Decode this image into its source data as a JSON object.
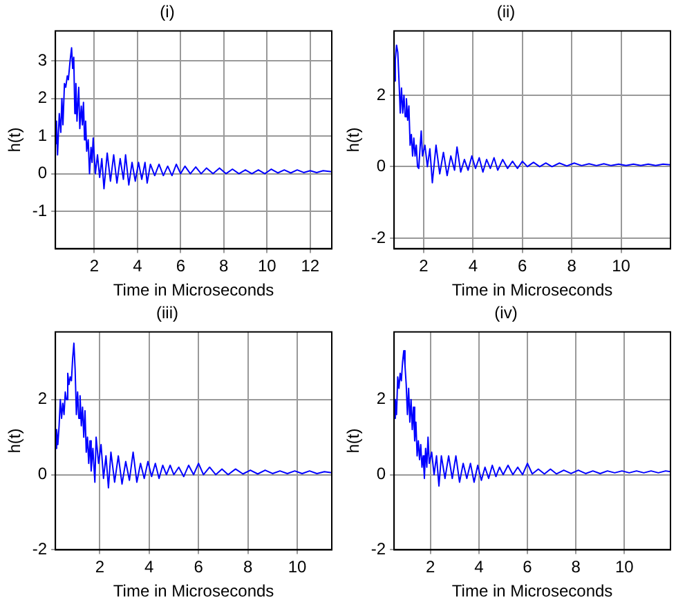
{
  "chart_data": [
    {
      "type": "line",
      "title": "(i)",
      "xlabel": "Time in Microseconds",
      "ylabel": "h(t)",
      "color": "#0000ff",
      "marker": "none",
      "line_style": "solid",
      "grid": true,
      "xlim": [
        0.2,
        13
      ],
      "ylim": [
        -2,
        3.8
      ],
      "xticks": [
        2,
        4,
        6,
        8,
        10,
        12
      ],
      "yticks": [
        -1,
        0,
        1,
        2,
        3
      ],
      "x": [
        0.2,
        0.25,
        0.3,
        0.38,
        0.45,
        0.5,
        0.55,
        0.62,
        0.68,
        0.75,
        0.8,
        0.88,
        0.95,
        1.0,
        1.05,
        1.1,
        1.15,
        1.2,
        1.28,
        1.33,
        1.4,
        1.45,
        1.5,
        1.55,
        1.6,
        1.65,
        1.72,
        1.78,
        1.85,
        1.9,
        1.95,
        2.05,
        2.15,
        2.25,
        2.35,
        2.45,
        2.6,
        2.75,
        2.9,
        3.05,
        3.2,
        3.35,
        3.45,
        3.6,
        3.75,
        3.9,
        4.05,
        4.2,
        4.35,
        4.45,
        4.6,
        4.8,
        5.0,
        5.2,
        5.4,
        5.6,
        5.8,
        6.0,
        6.2,
        6.45,
        6.7,
        6.95,
        7.2,
        7.5,
        7.8,
        8.1,
        8.4,
        8.7,
        9.0,
        9.3,
        9.6,
        9.9,
        10.2,
        10.5,
        10.8,
        11.1,
        11.4,
        11.7,
        12.0,
        12.3,
        12.6,
        13.0
      ],
      "values": [
        0.8,
        1.4,
        0.5,
        1.6,
        1.1,
        2.0,
        1.3,
        2.4,
        2.3,
        2.6,
        2.5,
        3.0,
        3.35,
        2.8,
        3.1,
        1.6,
        2.4,
        1.4,
        2.3,
        1.2,
        1.8,
        1.3,
        1.9,
        0.9,
        1.4,
        0.6,
        0.9,
        0.0,
        0.7,
        0.3,
        0.95,
        0.0,
        0.5,
        -0.1,
        0.4,
        -0.4,
        0.55,
        -0.2,
        0.5,
        -0.25,
        0.4,
        -0.15,
        0.5,
        -0.3,
        0.3,
        -0.2,
        0.3,
        -0.15,
        0.3,
        -0.25,
        0.25,
        -0.05,
        0.25,
        -0.05,
        0.2,
        -0.05,
        0.25,
        0.0,
        0.2,
        0.0,
        0.18,
        0.0,
        0.15,
        0.0,
        0.15,
        0.0,
        0.12,
        0.0,
        0.1,
        0.0,
        0.1,
        0.0,
        0.12,
        0.02,
        0.1,
        0.02,
        0.1,
        0.03,
        0.08,
        0.03,
        0.08,
        0.05
      ]
    },
    {
      "type": "line",
      "title": "(ii)",
      "xlabel": "Time in Microseconds",
      "ylabel": "h(t)",
      "color": "#0000ff",
      "marker": "none",
      "line_style": "solid",
      "grid": true,
      "xlim": [
        0.8,
        12
      ],
      "ylim": [
        -2.3,
        3.8
      ],
      "xticks": [
        2,
        4,
        6,
        8,
        10
      ],
      "yticks": [
        -2,
        0,
        2
      ],
      "x": [
        0.8,
        0.85,
        0.9,
        0.95,
        1.0,
        1.05,
        1.1,
        1.15,
        1.2,
        1.25,
        1.3,
        1.35,
        1.4,
        1.45,
        1.5,
        1.55,
        1.6,
        1.65,
        1.7,
        1.75,
        1.8,
        1.85,
        1.9,
        1.95,
        2.05,
        2.15,
        2.25,
        2.35,
        2.5,
        2.65,
        2.8,
        2.95,
        3.1,
        3.25,
        3.35,
        3.5,
        3.65,
        3.8,
        3.95,
        4.1,
        4.25,
        4.4,
        4.55,
        4.7,
        4.85,
        5.0,
        5.2,
        5.4,
        5.6,
        5.8,
        6.0,
        6.2,
        6.45,
        6.7,
        6.95,
        7.2,
        7.5,
        7.8,
        8.1,
        8.4,
        8.7,
        9.0,
        9.3,
        9.6,
        9.9,
        10.2,
        10.5,
        10.8,
        11.1,
        11.4,
        11.7,
        12.0
      ],
      "values": [
        2.4,
        3.0,
        3.4,
        3.2,
        2.4,
        1.5,
        2.2,
        1.5,
        2.0,
        1.4,
        1.9,
        1.3,
        1.7,
        0.6,
        0.9,
        0.3,
        0.8,
        0.3,
        0.6,
        0.0,
        -0.05,
        0.5,
        1.0,
        0.3,
        0.6,
        0.0,
        0.5,
        -0.45,
        0.6,
        -0.2,
        0.4,
        -0.25,
        0.3,
        -0.1,
        0.55,
        -0.15,
        0.2,
        -0.1,
        0.3,
        -0.05,
        0.25,
        -0.15,
        0.2,
        -0.05,
        0.25,
        -0.1,
        0.2,
        -0.05,
        0.15,
        -0.05,
        0.15,
        0.0,
        0.12,
        0.0,
        0.1,
        0.0,
        0.1,
        0.02,
        0.1,
        0.03,
        0.08,
        0.03,
        0.08,
        0.03,
        0.07,
        0.03,
        0.07,
        0.03,
        0.07,
        0.03,
        0.07,
        0.05
      ]
    },
    {
      "type": "line",
      "title": "(iii)",
      "xlabel": "Time in Microseconds",
      "ylabel": "h(t)",
      "color": "#0000ff",
      "marker": "none",
      "line_style": "solid",
      "grid": true,
      "xlim": [
        0.2,
        11.4
      ],
      "ylim": [
        -2,
        3.8
      ],
      "xticks": [
        2,
        4,
        6,
        8,
        10
      ],
      "yticks": [
        -2,
        0,
        2
      ],
      "x": [
        0.2,
        0.25,
        0.3,
        0.35,
        0.4,
        0.45,
        0.5,
        0.55,
        0.6,
        0.65,
        0.7,
        0.75,
        0.8,
        0.85,
        0.9,
        0.95,
        1.0,
        1.05,
        1.1,
        1.15,
        1.2,
        1.25,
        1.3,
        1.35,
        1.4,
        1.45,
        1.5,
        1.55,
        1.6,
        1.65,
        1.72,
        1.8,
        1.85,
        1.95,
        2.05,
        2.15,
        2.25,
        2.35,
        2.45,
        2.6,
        2.75,
        2.9,
        3.05,
        3.2,
        3.35,
        3.5,
        3.65,
        3.8,
        3.95,
        4.1,
        4.25,
        4.4,
        4.55,
        4.7,
        4.85,
        5.0,
        5.2,
        5.4,
        5.6,
        5.8,
        6.0,
        6.2,
        6.45,
        6.7,
        6.95,
        7.2,
        7.5,
        7.8,
        8.1,
        8.4,
        8.7,
        9.0,
        9.3,
        9.6,
        9.9,
        10.2,
        10.5,
        10.8,
        11.1,
        11.4
      ],
      "values": [
        0.7,
        1.2,
        0.8,
        1.3,
        2.0,
        1.5,
        1.9,
        1.6,
        2.2,
        2.0,
        2.7,
        2.4,
        2.6,
        2.5,
        3.1,
        3.5,
        2.8,
        1.6,
        2.2,
        1.5,
        2.1,
        1.3,
        1.8,
        1.0,
        1.7,
        0.6,
        1.0,
        0.3,
        0.9,
        0.1,
        0.7,
        -0.2,
        1.0,
        0.3,
        0.8,
        -0.1,
        0.5,
        -0.35,
        0.6,
        -0.2,
        0.5,
        -0.25,
        0.35,
        -0.15,
        0.6,
        -0.2,
        0.3,
        -0.1,
        0.35,
        -0.05,
        0.3,
        -0.1,
        0.25,
        0.0,
        0.25,
        0.0,
        0.2,
        -0.05,
        0.25,
        0.0,
        0.3,
        0.0,
        0.2,
        0.0,
        0.15,
        0.0,
        0.15,
        0.02,
        0.12,
        0.02,
        0.12,
        0.03,
        0.1,
        0.03,
        0.1,
        0.03,
        0.1,
        0.03,
        0.08,
        0.05
      ]
    },
    {
      "type": "line",
      "title": "(iv)",
      "xlabel": "Time in Microseconds",
      "ylabel": "h(t)",
      "color": "#0000ff",
      "marker": "none",
      "line_style": "solid",
      "grid": true,
      "xlim": [
        0.5,
        11.9
      ],
      "ylim": [
        -2,
        3.8
      ],
      "xticks": [
        2,
        4,
        6,
        8,
        10
      ],
      "yticks": [
        -2,
        0,
        2
      ],
      "x": [
        0.5,
        0.55,
        0.6,
        0.65,
        0.7,
        0.75,
        0.8,
        0.85,
        0.9,
        0.95,
        1.0,
        1.05,
        1.1,
        1.15,
        1.2,
        1.25,
        1.3,
        1.35,
        1.4,
        1.45,
        1.5,
        1.55,
        1.6,
        1.65,
        1.7,
        1.75,
        1.8,
        1.85,
        1.9,
        1.95,
        2.05,
        2.15,
        2.25,
        2.35,
        2.45,
        2.6,
        2.75,
        2.9,
        3.05,
        3.2,
        3.35,
        3.5,
        3.65,
        3.8,
        3.95,
        4.1,
        4.25,
        4.4,
        4.55,
        4.7,
        4.85,
        5.0,
        5.2,
        5.4,
        5.6,
        5.8,
        6.0,
        6.2,
        6.45,
        6.7,
        6.95,
        7.2,
        7.5,
        7.8,
        8.1,
        8.4,
        8.7,
        9.0,
        9.3,
        9.6,
        9.9,
        10.2,
        10.5,
        10.8,
        11.1,
        11.4,
        11.7,
        11.9
      ],
      "values": [
        1.5,
        2.0,
        1.6,
        2.6,
        2.3,
        2.7,
        2.5,
        3.0,
        3.3,
        2.9,
        2.4,
        1.6,
        2.3,
        1.4,
        2.0,
        1.2,
        1.8,
        0.9,
        1.4,
        0.5,
        0.9,
        0.4,
        0.8,
        0.2,
        0.5,
        -0.1,
        0.7,
        0.2,
        1.0,
        0.3,
        0.6,
        0.0,
        0.5,
        -0.3,
        0.5,
        -0.1,
        0.5,
        -0.1,
        0.5,
        -0.2,
        0.3,
        -0.1,
        0.3,
        -0.2,
        0.25,
        -0.15,
        0.2,
        -0.1,
        0.25,
        -0.05,
        0.2,
        0.0,
        0.25,
        0.0,
        0.2,
        0.0,
        0.3,
        0.02,
        0.15,
        0.02,
        0.15,
        0.02,
        0.12,
        0.03,
        0.12,
        0.03,
        0.1,
        0.03,
        0.1,
        0.05,
        0.1,
        0.05,
        0.1,
        0.05,
        0.1,
        0.05,
        0.1,
        0.08
      ]
    }
  ]
}
